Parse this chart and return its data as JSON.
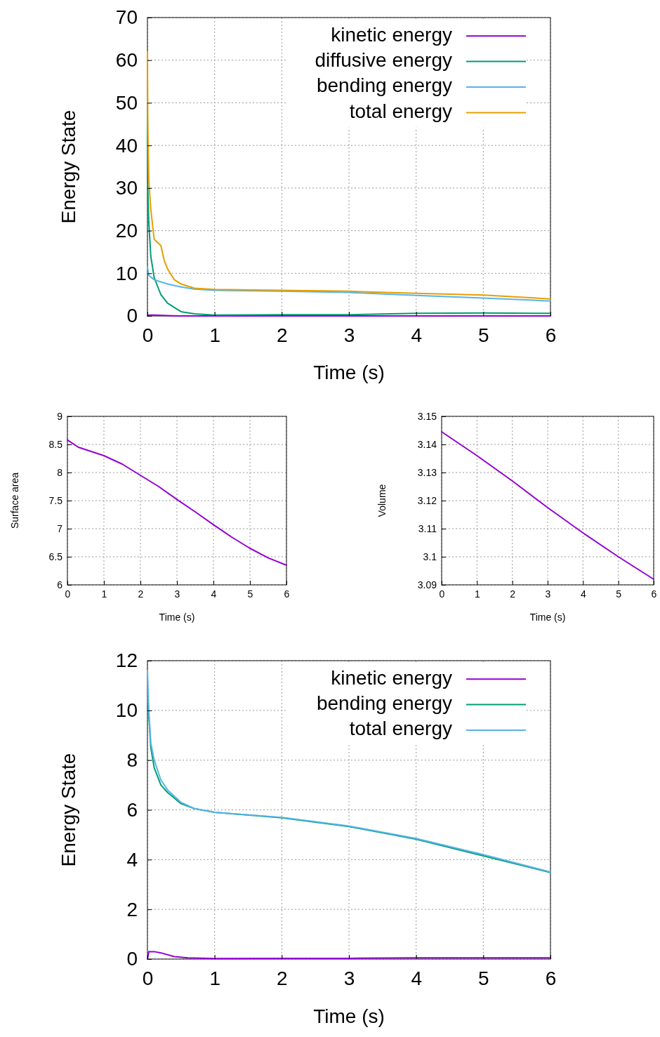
{
  "chart_data": [
    {
      "type": "line",
      "xlabel": "Time (s)",
      "ylabel": "Energy State",
      "xlim": [
        0,
        6
      ],
      "ylim": [
        0,
        70
      ],
      "xticks": [
        0,
        1,
        2,
        3,
        4,
        5,
        6
      ],
      "yticks": [
        0,
        10,
        20,
        30,
        40,
        50,
        60,
        70
      ],
      "grid": true,
      "legend": "top right",
      "line_style": "solid",
      "series": [
        {
          "name": "kinetic energy",
          "color": "#9400d3",
          "x": [
            0,
            0.02,
            0.1,
            0.3,
            0.5,
            1,
            2,
            3,
            4,
            5,
            6
          ],
          "values": [
            0,
            0.2,
            0.2,
            0.1,
            0,
            0,
            0,
            0,
            0,
            0,
            0
          ]
        },
        {
          "name": "diffusive energy",
          "color": "#009e73",
          "x": [
            0,
            0,
            0.005,
            0.02,
            0.05,
            0.1,
            0.15,
            0.2,
            0.3,
            0.4,
            0.5,
            0.7,
            1,
            2,
            3,
            4,
            5,
            6
          ],
          "values": [
            40,
            50,
            30,
            22,
            14,
            9,
            7,
            5,
            3,
            2,
            1,
            0.5,
            0.2,
            0.3,
            0.3,
            0.6,
            0.7,
            0.6
          ]
        },
        {
          "name": "bending energy",
          "color": "#56b4e9",
          "x": [
            0,
            0.02,
            0.1,
            0.2,
            0.3,
            0.5,
            0.7,
            1,
            2,
            3,
            4,
            5,
            6
          ],
          "values": [
            11.5,
            9.5,
            8.5,
            8,
            7.5,
            6.8,
            6.3,
            6,
            5.8,
            5.5,
            4.8,
            4.2,
            3.5
          ]
        },
        {
          "name": "total energy",
          "color": "#e69f00",
          "x": [
            0,
            0.005,
            0.02,
            0.05,
            0.1,
            0.2,
            0.25,
            0.3,
            0.4,
            0.5,
            0.7,
            1,
            2,
            3,
            4,
            5,
            6
          ],
          "values": [
            62,
            45,
            32,
            25,
            18,
            16.5,
            13,
            11,
            8.5,
            7.5,
            6.5,
            6.2,
            6,
            5.8,
            5.3,
            4.9,
            4
          ]
        }
      ]
    },
    {
      "type": "line",
      "xlabel": "Time (s)",
      "ylabel": "Surface area",
      "xlim": [
        0,
        6
      ],
      "ylim": [
        6,
        9
      ],
      "xticks": [
        0,
        1,
        2,
        3,
        4,
        5,
        6
      ],
      "yticks": [
        6,
        6.5,
        7,
        7.5,
        8,
        8.5,
        9
      ],
      "grid": true,
      "line_style": "solid",
      "series": [
        {
          "color": "#9400d3",
          "x": [
            0,
            0.3,
            1,
            1.5,
            2,
            2.5,
            3,
            3.5,
            4,
            4.5,
            5,
            5.5,
            6
          ],
          "values": [
            8.58,
            8.45,
            8.3,
            8.15,
            7.95,
            7.75,
            7.52,
            7.3,
            7.07,
            6.85,
            6.65,
            6.48,
            6.35
          ]
        }
      ]
    },
    {
      "type": "line",
      "xlabel": "Time (s)",
      "ylabel": "Volume",
      "xlim": [
        0,
        6
      ],
      "ylim": [
        3.09,
        3.15
      ],
      "xticks": [
        0,
        1,
        2,
        3,
        4,
        5,
        6
      ],
      "yticks": [
        3.09,
        3.1,
        3.11,
        3.12,
        3.13,
        3.14,
        3.15
      ],
      "grid": true,
      "line_style": "solid",
      "series": [
        {
          "color": "#9400d3",
          "x": [
            0,
            1,
            2,
            3,
            4,
            5,
            6
          ],
          "values": [
            3.1445,
            3.136,
            3.127,
            3.1175,
            3.1085,
            3.1,
            3.092
          ]
        }
      ]
    },
    {
      "type": "line",
      "xlabel": "Time (s)",
      "ylabel": "Energy State",
      "xlim": [
        0,
        6
      ],
      "ylim": [
        0,
        12
      ],
      "xticks": [
        0,
        1,
        2,
        3,
        4,
        5,
        6
      ],
      "yticks": [
        0,
        2,
        4,
        6,
        8,
        10,
        12
      ],
      "grid": true,
      "legend": "top right",
      "line_style": "solid",
      "series": [
        {
          "name": "kinetic energy",
          "color": "#9400d3",
          "x": [
            0,
            0.02,
            0.1,
            0.2,
            0.4,
            0.6,
            1,
            2,
            3,
            4,
            5,
            6
          ],
          "values": [
            0,
            0.3,
            0.3,
            0.25,
            0.1,
            0.05,
            0.02,
            0.03,
            0.03,
            0.05,
            0.05,
            0.05
          ]
        },
        {
          "name": "bending energy",
          "color": "#009e73",
          "x": [
            0,
            0.02,
            0.05,
            0.1,
            0.2,
            0.3,
            0.5,
            0.7,
            1,
            2,
            3,
            4,
            5,
            6
          ],
          "values": [
            10.2,
            9.8,
            8.5,
            7.7,
            7.0,
            6.7,
            6.25,
            6.05,
            5.9,
            5.68,
            5.33,
            4.82,
            4.15,
            3.48
          ]
        },
        {
          "name": "total energy",
          "color": "#56b4e9",
          "x": [
            0,
            0.02,
            0.05,
            0.1,
            0.2,
            0.3,
            0.5,
            0.7,
            1,
            2,
            3,
            4,
            5,
            6
          ],
          "values": [
            11.6,
            10,
            8.7,
            8,
            7.2,
            6.8,
            6.3,
            6.05,
            5.9,
            5.7,
            5.35,
            4.85,
            4.2,
            3.5
          ]
        }
      ]
    }
  ]
}
